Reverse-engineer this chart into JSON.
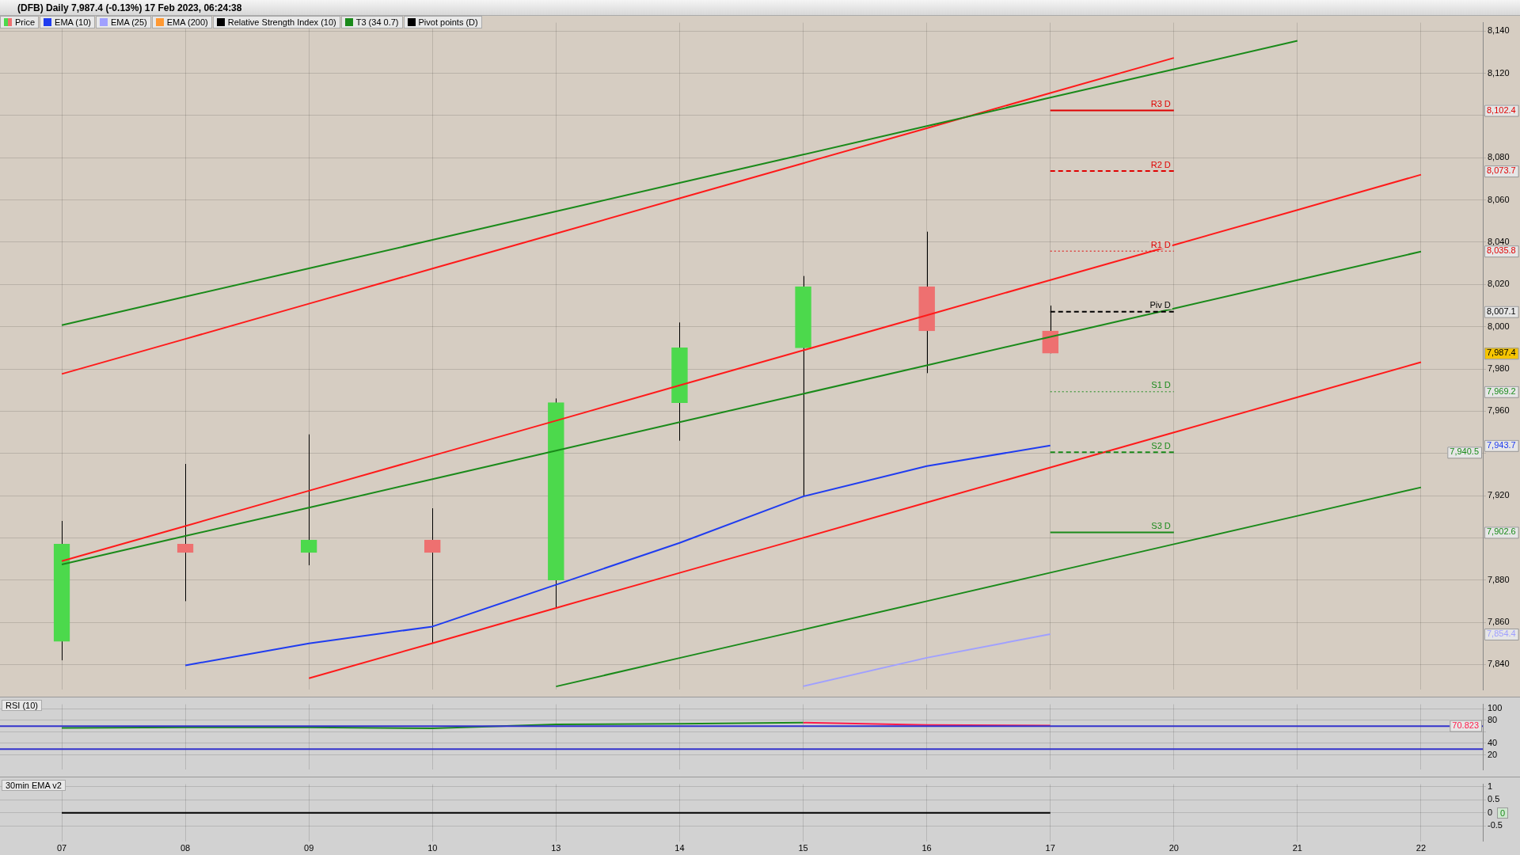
{
  "chart_data": [
    {
      "type": "candlestick",
      "title": "(DFB) Daily 7,987.4 (-0.13%) 17 Feb 2023, 06:24:38",
      "categories": [
        "07",
        "08",
        "09",
        "10",
        "13",
        "14",
        "15",
        "16",
        "17",
        "20",
        "21",
        "22"
      ],
      "series": [
        {
          "name": "Price",
          "ohlc": [
            [
              7851,
              7908,
              7842,
              7897
            ],
            [
              7897,
              7935,
              7870,
              7893
            ],
            [
              7893,
              7949,
              7887,
              7899
            ],
            [
              7899,
              7914,
              7850,
              7893
            ],
            [
              7880,
              7966,
              7867,
              7964
            ],
            [
              7964,
              8002,
              7946,
              7990
            ],
            [
              7990,
              8024,
              7920,
              8019
            ],
            [
              8019,
              8045,
              7978,
              7998
            ],
            [
              7998,
              8010,
              7987.4,
              7987.4
            ],
            null,
            null,
            null
          ],
          "colors": [
            "#4cd94c",
            "#ee7070",
            "#4cd94c",
            "#ee7070",
            "#4cd94c",
            "#4cd94c",
            "#4cd94c",
            "#ee7070",
            "#ee7070",
            null,
            null,
            null
          ]
        },
        {
          "name": "EMA (10)",
          "type": "line",
          "color": "#1f3cf0",
          "values": [
            null,
            7839.6,
            7850,
            7858,
            7877.8,
            7897.6,
            7919.6,
            7934,
            7943.7,
            null,
            null,
            null
          ]
        },
        {
          "name": "EMA (25)",
          "type": "line",
          "color": "#a0a0ff",
          "values": [
            null,
            null,
            null,
            null,
            null,
            null,
            7829.7,
            7843.2,
            7854.4,
            null,
            null,
            null
          ]
        },
        {
          "name": "EMA (200)",
          "type": "line",
          "color": "#ff9933",
          "values": [
            null,
            null,
            null,
            null,
            null,
            null,
            null,
            null,
            null,
            null,
            null,
            null
          ]
        },
        {
          "name": "Relative Strength Index (10)",
          "type": "line",
          "color": "#000000",
          "values": [
            null,
            null,
            null,
            null,
            null,
            null,
            null,
            null,
            null,
            null,
            null,
            null
          ]
        },
        {
          "name": "T3 (34 0.7)",
          "type": "line",
          "color": "#1a8a1a",
          "values": [
            8000.7,
            8014.2,
            8027.6,
            8041.1,
            8054.6,
            8068.1,
            8081.5,
            8095,
            8108.5,
            8121.9,
            8135.4,
            null
          ]
        },
        {
          "type": "line",
          "color": "#1a8a1a",
          "values": [
            7887.4,
            7900.9,
            7914.3,
            7927.8,
            7941.3,
            7954.8,
            7968.2,
            7981.7,
            7995.2,
            8008.6,
            8022.1,
            8035.6
          ]
        },
        {
          "type": "line",
          "color": "#1a8a1a",
          "values": [
            null,
            null,
            null,
            null,
            7829.6,
            7843.1,
            7856.5,
            7870,
            7883.5,
            7897,
            7910.4,
            7923.9
          ]
        },
        {
          "type": "line",
          "color": "#ff1a1a",
          "values": [
            7977.6,
            7994.2,
            8010.9,
            8027.5,
            8044.1,
            8060.8,
            8077.4,
            8094,
            8110.7,
            8127.3,
            null,
            null
          ]
        },
        {
          "type": "line",
          "color": "#ff1a1a",
          "values": [
            7889,
            7905.6,
            7922.3,
            7938.9,
            7955.5,
            7972.2,
            7988.8,
            8005.4,
            8022.1,
            8038.7,
            8055.3,
            8072
          ]
        },
        {
          "type": "line",
          "color": "#ff1a1a",
          "values": [
            null,
            null,
            7833.5,
            7850.1,
            7866.8,
            7883.4,
            7900,
            7916.7,
            7933.3,
            7949.9,
            7966.6,
            7983.2
          ]
        },
        {
          "name": "Pivot points (D)",
          "type": "line",
          "color": "#000000",
          "values": [
            null,
            null,
            null,
            null,
            null,
            null,
            null,
            null,
            null,
            null,
            null,
            null
          ]
        }
      ],
      "ref_lines": [
        {
          "axis": "y",
          "value": 8102.4,
          "label": "R3 D",
          "color": "#e00000",
          "line_style": "solid"
        },
        {
          "axis": "y",
          "value": 8073.7,
          "label": "R2 D",
          "color": "#e00000",
          "line_style": "dashed"
        },
        {
          "axis": "y",
          "value": 8035.8,
          "label": "R1 D",
          "color": "#e00000",
          "line_style": "dotted"
        },
        {
          "axis": "y",
          "value": 8007.1,
          "label": "Piv D",
          "color": "#000000",
          "line_style": "dashed"
        },
        {
          "axis": "y",
          "value": 7969.2,
          "label": "S1 D",
          "color": "#1a8a1a",
          "line_style": "dotted"
        },
        {
          "axis": "y",
          "value": 7940.5,
          "label": "S2 D",
          "color": "#1a8a1a",
          "line_style": "dashed"
        },
        {
          "axis": "y",
          "value": 7902.6,
          "label": "S3 D",
          "color": "#1a8a1a",
          "line_style": "solid"
        }
      ],
      "annotations": [
        {
          "text": "8,102.4",
          "y": 8102.4
        },
        {
          "text": "8,073.7",
          "y": 8073.7
        },
        {
          "text": "8,035.8",
          "y": 8035.8
        },
        {
          "text": "8,007.1",
          "y": 8007.1
        },
        {
          "text": "7,987.4",
          "y": 7987.4
        },
        {
          "text": "7,969.2",
          "y": 7969.2
        },
        {
          "text": "7,943.7",
          "y": 7943.7
        },
        {
          "text": "7,940.5",
          "y": 7940.5
        },
        {
          "text": "7,902.6",
          "y": 7902.6
        },
        {
          "text": "7,854.4",
          "y": 7854.4
        }
      ],
      "ylim": [
        7828,
        8144
      ],
      "yticks": [
        {
          "value": 7840,
          "label": "7,840"
        },
        {
          "value": 7860,
          "label": "7,860"
        },
        {
          "value": 7880,
          "label": "7,880"
        },
        {
          "value": 7900,
          "label": null
        },
        {
          "value": 7920,
          "label": "7,920"
        },
        {
          "value": 7940,
          "label": null
        },
        {
          "value": 7960,
          "label": "7,960"
        },
        {
          "value": 7980,
          "label": "7,980"
        },
        {
          "value": 8000,
          "label": "8,000"
        },
        {
          "value": 8020,
          "label": "8,020"
        },
        {
          "value": 8040,
          "label": "8,040"
        },
        {
          "value": 8060,
          "label": "8,060"
        },
        {
          "value": 8080,
          "label": "8,080"
        },
        {
          "value": 8100,
          "label": null
        },
        {
          "value": 8120,
          "label": "8,120"
        },
        {
          "value": 8140,
          "label": "8,140"
        }
      ],
      "grid": true,
      "legend": "top left",
      "tick_labels": "y"
    },
    {
      "type": "line",
      "title": "RSI (10)",
      "categories": [
        "07",
        "08",
        "09",
        "10",
        "13",
        "14",
        "15",
        "16",
        "17",
        "20",
        "21",
        "22"
      ],
      "series": [
        {
          "color": "#1a8a1a",
          "values": [
            67,
            68,
            68,
            66,
            73,
            74,
            76,
            null,
            null,
            null,
            null,
            null
          ]
        },
        {
          "color": "#ff1a4a",
          "values": [
            null,
            null,
            null,
            null,
            null,
            null,
            76,
            72,
            70.823,
            null,
            null,
            null
          ]
        }
      ],
      "ref_lines": [
        {
          "axis": "y",
          "value": 70,
          "color": "#3333cc"
        },
        {
          "axis": "y",
          "value": 30,
          "color": "#3333cc"
        }
      ],
      "annotations": [
        {
          "text": "70.823",
          "y": 70.823
        }
      ],
      "ylim": [
        -6,
        108
      ],
      "yticks": [
        20,
        40,
        {
          "value": 60,
          "label": null
        },
        80,
        100
      ],
      "grid": true,
      "tick_labels": "y"
    },
    {
      "type": "line",
      "title": "30min EMA v2",
      "categories": [
        "07",
        "08",
        "09",
        "10",
        "13",
        "14",
        "15",
        "16",
        "17",
        "20",
        "21",
        "22"
      ],
      "series": [
        {
          "color": "#000000",
          "values": [
            0,
            0,
            0,
            0,
            0,
            0,
            0,
            0,
            0,
            null,
            null,
            null
          ]
        }
      ],
      "annotations": [
        "0"
      ],
      "ylim": [
        -1.1,
        1.1
      ],
      "yticks": [
        -0.5,
        0,
        0.5,
        1
      ],
      "grid": true
    }
  ]
}
